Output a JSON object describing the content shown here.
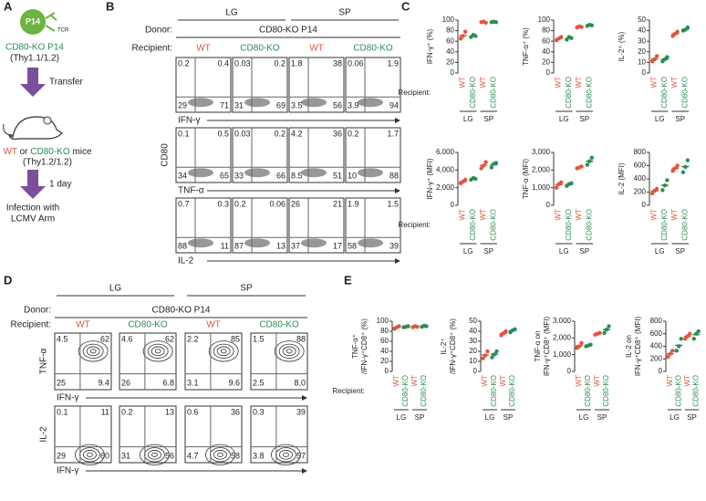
{
  "panels": {
    "A": {
      "label": "A",
      "p14": "P14",
      "tcr": "TCR",
      "donor_cells": "CD80-KO P14",
      "donor_thy": "(Thy1.1/1.2)",
      "step1": "Transfer",
      "recipient_wt": "WT",
      "recipient_or": "or",
      "recipient_ko": "CD80-KO",
      "recipient_mice": "mice",
      "recipient_thy": "(Thy1.2/1.2)",
      "step2": "1 day",
      "infection": [
        "Infection with",
        "LCMV Arm"
      ]
    },
    "B": {
      "label": "B",
      "tissues": [
        "LG",
        "SP"
      ],
      "donor_label": "Donor:",
      "donor": "CD80-KO P14",
      "recipient_label": "Recipient:",
      "recipients": [
        "WT",
        "CD80-KO",
        "WT",
        "CD80-KO"
      ],
      "y_axis": "CD80",
      "rows": [
        {
          "x_axis": "IFN-γ",
          "quadrants": [
            [
              "0.2",
              "0.4",
              "29",
              "71"
            ],
            [
              "0.03",
              "0.2",
              "31",
              "69"
            ],
            [
              "1.8",
              "38",
              "3.5",
              "56"
            ],
            [
              "0.06",
              "1.9",
              "3.9",
              "94"
            ]
          ]
        },
        {
          "x_axis": "TNF-α",
          "quadrants": [
            [
              "0.1",
              "0.5",
              "34",
              "65"
            ],
            [
              "0.03",
              "0.2",
              "33",
              "66"
            ],
            [
              "4.2",
              "36",
              "8.5",
              "51"
            ],
            [
              "0.2",
              "1.7",
              "10",
              "88"
            ]
          ]
        },
        {
          "x_axis": "IL-2",
          "quadrants": [
            [
              "0.7",
              "0.3",
              "88",
              "11"
            ],
            [
              "0.2",
              "0.06",
              "87",
              "13"
            ],
            [
              "26",
              "21",
              "37",
              "17"
            ],
            [
              "1.9",
              "1.5",
              "58",
              "39"
            ]
          ]
        }
      ]
    },
    "C": {
      "label": "C",
      "recipient_label": "Recipient:"
    },
    "D": {
      "label": "D",
      "tissues": [
        "LG",
        "SP"
      ],
      "donor_label": "Donor:",
      "donor": "CD80-KO P14",
      "recipient_label": "Recipient:",
      "recipients": [
        "WT",
        "CD80-KO",
        "WT",
        "CD80-KO"
      ],
      "rows": [
        {
          "y_axis": "TNF-α",
          "x_axis": "IFN-γ",
          "quadrants": [
            [
              "4.5",
              "62",
              "25",
              "9.4"
            ],
            [
              "4.6",
              "62",
              "26",
              "6.8"
            ],
            [
              "2.2",
              "85",
              "3.1",
              "9.6"
            ],
            [
              "1.5",
              "88",
              "2.5",
              "8.0"
            ]
          ]
        },
        {
          "y_axis": "IL-2",
          "x_axis": "IFN-γ",
          "quadrants": [
            [
              "0.1",
              "11",
              "29",
              "60"
            ],
            [
              "0.2",
              "13",
              "31",
              "56"
            ],
            [
              "0.6",
              "36",
              "4.7",
              "58"
            ],
            [
              "0.3",
              "39",
              "3.8",
              "57"
            ]
          ]
        }
      ]
    },
    "E": {
      "label": "E",
      "recipient_label": "Recipient:"
    }
  },
  "chart_data": [
    {
      "type": "dot",
      "ylabel": "IFN-γ⁺ (%)",
      "ylim": [
        0,
        100
      ],
      "yticks": [
        0,
        20,
        40,
        60,
        80,
        100
      ],
      "categories": [
        "WT",
        "CD80-KO",
        "WT",
        "CD80-KO"
      ],
      "colors": [
        "#e5533c",
        "#2a8c55",
        "#e5533c",
        "#2a8c55"
      ],
      "groups": [
        "LG",
        "SP"
      ],
      "values": [
        [
          65,
          70,
          78
        ],
        [
          68,
          72,
          70
        ],
        [
          96,
          97,
          95
        ],
        [
          96,
          97,
          96
        ]
      ]
    },
    {
      "type": "dot",
      "ylabel": "TNF-α⁺ (%)",
      "ylim": [
        0,
        100
      ],
      "yticks": [
        0,
        20,
        40,
        60,
        80,
        100
      ],
      "categories": [
        "WT",
        "CD80-KO",
        "WT",
        "CD80-KO"
      ],
      "colors": [
        "#e5533c",
        "#2a8c55",
        "#e5533c",
        "#2a8c55"
      ],
      "groups": [
        "LG",
        "SP"
      ],
      "values": [
        [
          62,
          65,
          68
        ],
        [
          63,
          68,
          66
        ],
        [
          86,
          88,
          87
        ],
        [
          89,
          91,
          90
        ]
      ]
    },
    {
      "type": "dot",
      "ylabel": "IL-2⁺ (%)",
      "ylim": [
        0,
        50
      ],
      "yticks": [
        0,
        10,
        20,
        30,
        40,
        50
      ],
      "categories": [
        "WT",
        "CD80-KO",
        "WT",
        "CD80-KO"
      ],
      "colors": [
        "#e5533c",
        "#2a8c55",
        "#e5533c",
        "#2a8c55"
      ],
      "groups": [
        "LG",
        "SP"
      ],
      "values": [
        [
          11,
          13,
          16
        ],
        [
          11,
          13,
          15
        ],
        [
          35,
          37,
          39
        ],
        [
          40,
          41,
          43
        ]
      ]
    },
    {
      "type": "dot",
      "ylabel": "IFN-γ⁺ (MFI)",
      "ylim": [
        0,
        6000
      ],
      "yticks": [
        0,
        {
          "value": 2000,
          "label": "2,000"
        },
        {
          "value": 4000,
          "label": "4,000"
        },
        {
          "value": 6000,
          "label": "6,000"
        }
      ],
      "categories": [
        "WT",
        "CD80-KO",
        "WT",
        "CD80-KO"
      ],
      "colors": [
        "#e5533c",
        "#2a8c55",
        "#e5533c",
        "#2a8c55"
      ],
      "groups": [
        "LG",
        "SP"
      ],
      "values": [
        [
          2500,
          2700,
          2900
        ],
        [
          2900,
          3100,
          3000
        ],
        [
          4200,
          4500,
          4900
        ],
        [
          4300,
          4700,
          4800
        ]
      ]
    },
    {
      "type": "dot",
      "ylabel": "TNF-α (MFI)",
      "ylim": [
        0,
        3000
      ],
      "yticks": [
        0,
        {
          "value": 1000,
          "label": "1,000"
        },
        {
          "value": 2000,
          "label": "2,000"
        },
        {
          "value": 3000,
          "label": "3,000"
        }
      ],
      "categories": [
        "WT",
        "CD80-KO",
        "WT",
        "CD80-KO"
      ],
      "colors": [
        "#e5533c",
        "#2a8c55",
        "#e5533c",
        "#2a8c55"
      ],
      "groups": [
        "LG",
        "SP"
      ],
      "values": [
        [
          1000,
          1200,
          1300
        ],
        [
          1100,
          1200,
          1250
        ],
        [
          2100,
          2150,
          2200
        ],
        [
          2300,
          2500,
          2700
        ]
      ]
    },
    {
      "type": "dot",
      "ylabel": "IL-2 (MFI)",
      "ylim": [
        0,
        800
      ],
      "yticks": [
        0,
        200,
        400,
        600,
        800
      ],
      "categories": [
        "WT",
        "CD80-KO",
        "WT",
        "CD80-KO"
      ],
      "colors": [
        "#e5533c",
        "#2a8c55",
        "#e5533c",
        "#2a8c55"
      ],
      "groups": [
        "LG",
        "SP"
      ],
      "values": [
        [
          180,
          220,
          250
        ],
        [
          230,
          300,
          380
        ],
        [
          520,
          560,
          600
        ],
        [
          500,
          580,
          680
        ]
      ]
    },
    {
      "type": "dot",
      "ylabel": [
        "TNF-α⁺",
        "/IFN-γ⁺CD8⁺ (%)"
      ],
      "ylim": [
        0,
        100
      ],
      "yticks": [
        0,
        20,
        40,
        60,
        80,
        100
      ],
      "categories": [
        "WT",
        "CD80-KO",
        "WT",
        "CD80-KO"
      ],
      "colors": [
        "#e5533c",
        "#2a8c55",
        "#e5533c",
        "#2a8c55"
      ],
      "groups": [
        "LG",
        "SP"
      ],
      "values": [
        [
          85,
          88,
          90
        ],
        [
          88,
          89,
          90
        ],
        [
          88,
          90,
          89
        ],
        [
          89,
          91,
          90
        ]
      ]
    },
    {
      "type": "dot",
      "ylabel": [
        "IL-2⁺",
        "/IFN-γ⁺CD8⁺ (%)"
      ],
      "ylim": [
        0,
        50
      ],
      "yticks": [
        0,
        10,
        20,
        30,
        40,
        50
      ],
      "categories": [
        "WT",
        "CD80-KO",
        "WT",
        "CD80-KO"
      ],
      "colors": [
        "#e5533c",
        "#2a8c55",
        "#e5533c",
        "#2a8c55"
      ],
      "groups": [
        "LG",
        "SP"
      ],
      "values": [
        [
          13,
          16,
          20
        ],
        [
          14,
          17,
          20
        ],
        [
          36,
          38,
          40
        ],
        [
          39,
          41,
          42
        ]
      ]
    },
    {
      "type": "dot",
      "ylabel": [
        "TNF-α on",
        "IFN-γ⁺CD8⁺ (MFI)"
      ],
      "ylim": [
        0,
        3000
      ],
      "yticks": [
        0,
        {
          "value": 1000,
          "label": "1,000"
        },
        {
          "value": 2000,
          "label": "2,000"
        },
        {
          "value": 3000,
          "label": "3,000"
        }
      ],
      "categories": [
        "WT",
        "CD80-KO",
        "WT",
        "CD80-KO"
      ],
      "colors": [
        "#e5533c",
        "#2a8c55",
        "#e5533c",
        "#2a8c55"
      ],
      "groups": [
        "LG",
        "SP"
      ],
      "values": [
        [
          1400,
          1500,
          1700
        ],
        [
          1500,
          1550,
          1600
        ],
        [
          2200,
          2250,
          2300
        ],
        [
          2300,
          2500,
          2700
        ]
      ]
    },
    {
      "type": "dot",
      "ylabel": [
        "IL-2 on",
        "IFN-γ⁺CD8⁺ (MFI)"
      ],
      "ylim": [
        0,
        800
      ],
      "yticks": [
        0,
        200,
        400,
        600,
        800
      ],
      "categories": [
        "WT",
        "CD80-KO",
        "WT",
        "CD80-KO"
      ],
      "colors": [
        "#e5533c",
        "#2a8c55",
        "#e5533c",
        "#2a8c55"
      ],
      "groups": [
        "LG",
        "SP"
      ],
      "values": [
        [
          230,
          280,
          330
        ],
        [
          330,
          400,
          520
        ],
        [
          520,
          560,
          600
        ],
        [
          520,
          600,
          640
        ]
      ]
    }
  ]
}
